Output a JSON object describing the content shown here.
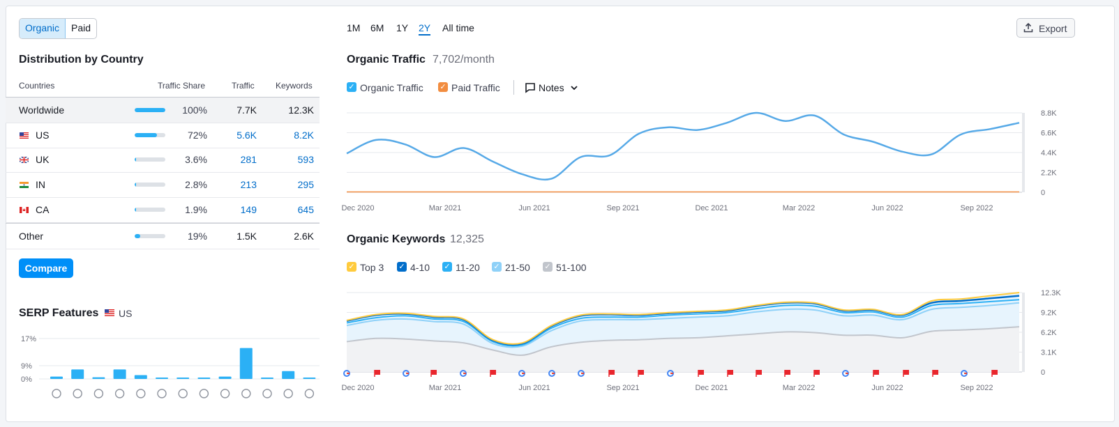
{
  "toggle": {
    "organic": "Organic",
    "paid": "Paid"
  },
  "distribution": {
    "title": "Distribution by Country",
    "headers": {
      "countries": "Countries",
      "share": "Traffic Share",
      "traffic": "Traffic",
      "keywords": "Keywords"
    },
    "rows": [
      {
        "country": "Worldwide",
        "share": "100%",
        "share_value": 100,
        "traffic": "7.7K",
        "keywords": "12.3K"
      },
      {
        "country": "US",
        "share": "72%",
        "share_value": 72,
        "traffic": "5.6K",
        "keywords": "8.2K"
      },
      {
        "country": "UK",
        "share": "3.6%",
        "share_value": 3.6,
        "traffic": "281",
        "keywords": "593"
      },
      {
        "country": "IN",
        "share": "2.8%",
        "share_value": 2.8,
        "traffic": "213",
        "keywords": "295"
      },
      {
        "country": "CA",
        "share": "1.9%",
        "share_value": 1.9,
        "traffic": "149",
        "keywords": "645"
      },
      {
        "country": "Other",
        "share": "19%",
        "share_value": 19,
        "traffic": "1.5K",
        "keywords": "2.6K"
      }
    ],
    "compare": "Compare"
  },
  "serp": {
    "title": "SERP Features",
    "country": "US",
    "yticks": [
      "17%",
      "9%",
      "0%"
    ],
    "values": [
      1,
      4,
      0.7,
      4,
      1.6,
      0.5,
      0.5,
      0.5,
      1,
      13,
      0.5,
      3.3,
      0.5
    ]
  },
  "periods": [
    "1M",
    "6M",
    "1Y",
    "2Y",
    "All time"
  ],
  "export": "Export",
  "traffic": {
    "title": "Organic Traffic",
    "value": "7,702/month",
    "legend": {
      "organic": "Organic Traffic",
      "paid": "Paid Traffic",
      "notes": "Notes"
    },
    "yticks": [
      "8.8K",
      "6.6K",
      "4.4K",
      "2.2K",
      "0"
    ]
  },
  "keywords": {
    "title": "Organic Keywords",
    "value": "12,325",
    "legend": [
      "Top 3",
      "4-10",
      "11-20",
      "21-50",
      "51-100"
    ],
    "yticks": [
      "12.3K",
      "9.2K",
      "6.2K",
      "3.1K",
      "0"
    ]
  },
  "xticks": [
    "Dec 2020",
    "Mar 2021",
    "Jun 2021",
    "Sep 2021",
    "Dec 2021",
    "Mar 2022",
    "Jun 2022",
    "Sep 2022"
  ],
  "colors": {
    "accent": "#008ff8",
    "traffic": "#56a9e7",
    "paid": "#f28d40",
    "top3": "#ffcb3d",
    "k410": "#006dca",
    "k1120": "#2bb0f5",
    "k2150": "#8fd1f8",
    "k51100": "#c1c5cc"
  },
  "chart_data": [
    {
      "type": "line",
      "title": "Organic Traffic",
      "x": [
        "Dec 2020",
        "Jan 2021",
        "Feb 2021",
        "Mar 2021",
        "Apr 2021",
        "May 2021",
        "Jun 2021",
        "Jul 2021",
        "Aug 2021",
        "Sep 2021",
        "Oct 2021",
        "Nov 2021",
        "Dec 2021",
        "Jan 2022",
        "Feb 2022",
        "Mar 2022",
        "Apr 2022",
        "May 2022",
        "Jun 2022",
        "Jul 2022",
        "Aug 2022",
        "Sep 2022",
        "Oct 2022",
        "Nov 2022"
      ],
      "series": [
        {
          "name": "Organic Traffic",
          "values": [
            4300,
            5800,
            5300,
            3900,
            4900,
            3400,
            2000,
            1500,
            3900,
            4100,
            6500,
            7200,
            6900,
            7700,
            8800,
            7900,
            8500,
            6400,
            5600,
            4500,
            4200,
            6400,
            7000,
            7700
          ]
        },
        {
          "name": "Paid Traffic",
          "values": [
            0,
            0,
            0,
            0,
            0,
            0,
            0,
            0,
            0,
            0,
            0,
            0,
            0,
            0,
            0,
            0,
            0,
            0,
            0,
            0,
            0,
            0,
            0,
            0
          ]
        }
      ],
      "ylim": [
        0,
        8800
      ]
    },
    {
      "type": "area",
      "title": "Organic Keywords",
      "x": [
        "Dec 2020",
        "Jan 2021",
        "Feb 2021",
        "Mar 2021",
        "Apr 2021",
        "May 2021",
        "Jun 2021",
        "Jul 2021",
        "Aug 2021",
        "Sep 2021",
        "Oct 2021",
        "Nov 2021",
        "Dec 2021",
        "Jan 2022",
        "Feb 2022",
        "Mar 2022",
        "Apr 2022",
        "May 2022",
        "Jun 2022",
        "Jul 2022",
        "Aug 2022",
        "Sep 2022",
        "Oct 2022",
        "Nov 2022"
      ],
      "series": [
        {
          "name": "Top 3",
          "values": [
            8000,
            8900,
            9100,
            8600,
            8200,
            5000,
            4500,
            7200,
            8800,
            9000,
            8900,
            9200,
            9400,
            9600,
            10300,
            10800,
            10700,
            9600,
            9700,
            8900,
            11000,
            11300,
            11800,
            12300
          ]
        },
        {
          "name": "4-10",
          "values": [
            7900,
            8800,
            9000,
            8500,
            8100,
            4900,
            4400,
            7100,
            8700,
            8900,
            8800,
            9100,
            9300,
            9500,
            10200,
            10700,
            10600,
            9500,
            9600,
            8800,
            10700,
            11000,
            11400,
            11800
          ]
        },
        {
          "name": "11-20",
          "values": [
            7600,
            8400,
            8700,
            8200,
            7800,
            4700,
            4200,
            6800,
            8300,
            8500,
            8500,
            8800,
            9000,
            9200,
            9800,
            10300,
            10200,
            9200,
            9300,
            8500,
            10300,
            10600,
            10900,
            11200
          ]
        },
        {
          "name": "21-50",
          "values": [
            7200,
            8000,
            8200,
            7800,
            7400,
            4400,
            4000,
            6400,
            7900,
            8100,
            8100,
            8300,
            8500,
            8700,
            9300,
            9700,
            9600,
            8700,
            8800,
            8100,
            9700,
            10000,
            10300,
            10700
          ]
        },
        {
          "name": "51-100",
          "values": [
            4700,
            5200,
            5100,
            4800,
            4500,
            3400,
            2600,
            3900,
            4600,
            4900,
            5000,
            5200,
            5300,
            5600,
            5900,
            6200,
            6100,
            5700,
            5700,
            5300,
            6300,
            6500,
            6700,
            7000
          ]
        }
      ],
      "ylim": [
        0,
        12300
      ]
    },
    {
      "type": "bar",
      "title": "SERP Features",
      "values": [
        1,
        4,
        0.7,
        4,
        1.6,
        0.5,
        0.5,
        0.5,
        1,
        13,
        0.5,
        3.3,
        0.5
      ],
      "ylim": [
        0,
        17
      ]
    }
  ]
}
